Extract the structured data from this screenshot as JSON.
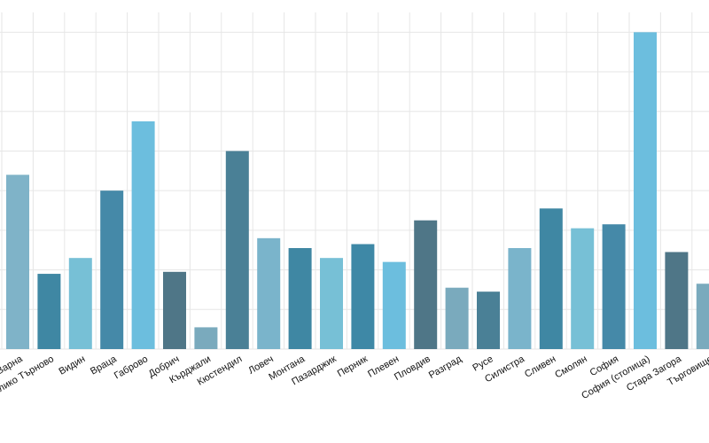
{
  "chart_data": {
    "type": "bar",
    "title": "",
    "xlabel": "",
    "ylabel": "",
    "grid": true,
    "ylim": [
      0,
      17
    ],
    "categories": [
      "Варна",
      "Велико Търново",
      "Видин",
      "Враца",
      "Габрово",
      "Добрич",
      "Кърджали",
      "Кюстендил",
      "Ловеч",
      "Монтана",
      "Пазарджик",
      "Перник",
      "Плевен",
      "Пловдив",
      "Разград",
      "Русе",
      "Силистра",
      "Сливен",
      "Смолян",
      "София",
      "София (столица)",
      "Стара Загора",
      "Търговище"
    ],
    "values": [
      8.8,
      3.8,
      4.6,
      8.0,
      11.5,
      3.9,
      1.1,
      10.0,
      5.6,
      5.1,
      4.6,
      5.3,
      4.4,
      6.5,
      3.1,
      2.9,
      5.1,
      7.1,
      6.1,
      6.3,
      16.0,
      4.9,
      3.3
    ],
    "colors": [
      "#7fb3c8",
      "#3f87a3",
      "#77c0d6",
      "#4589a8",
      "#6cbede",
      "#4f7687",
      "#7aaabd",
      "#4a8096",
      "#7ab4cb",
      "#3f87a3",
      "#77c0d6",
      "#3e88a6",
      "#6cbede",
      "#4f7687",
      "#7aaabd",
      "#4a8096",
      "#7ab4cb",
      "#3f87a3",
      "#77c0d6",
      "#4589a8",
      "#6cbede",
      "#4f7687",
      "#7aaabd"
    ]
  }
}
